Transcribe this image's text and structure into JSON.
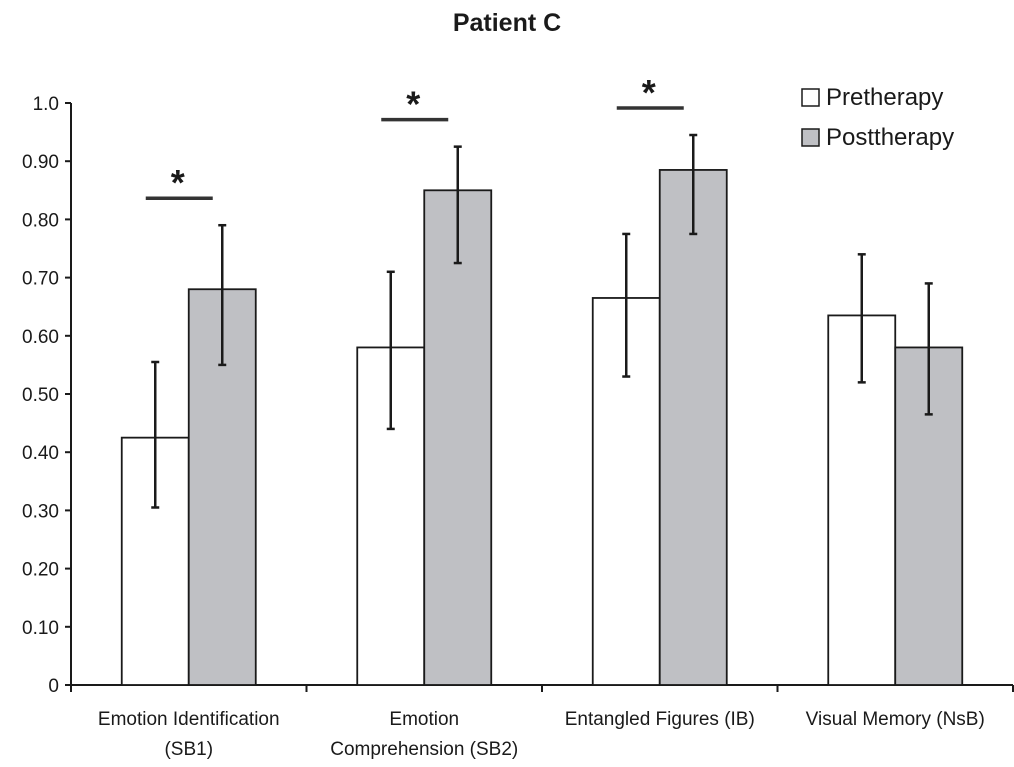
{
  "chart_data": {
    "type": "bar",
    "title": "Patient C",
    "xlabel": "",
    "ylabel": "",
    "ylim": [
      0,
      1.0
    ],
    "yticks": [
      {
        "value": 0,
        "label": "0"
      },
      {
        "value": 0.1,
        "label": "0.10"
      },
      {
        "value": 0.2,
        "label": "0.20"
      },
      {
        "value": 0.3,
        "label": "0.30"
      },
      {
        "value": 0.4,
        "label": "0.40"
      },
      {
        "value": 0.5,
        "label": "0.50"
      },
      {
        "value": 0.6,
        "label": "0.60"
      },
      {
        "value": 0.7,
        "label": "0.70"
      },
      {
        "value": 0.8,
        "label": "0.80"
      },
      {
        "value": 0.9,
        "label": "0.90"
      },
      {
        "value": 1.0,
        "label": "1.0"
      }
    ],
    "categories": [
      [
        "Emotion Identification",
        "(SB1)"
      ],
      [
        "Emotion",
        "Comprehension (SB2)"
      ],
      [
        "Entangled Figures (IB)"
      ],
      [
        "Visual Memory (NsB)"
      ]
    ],
    "series": [
      {
        "name": "Pretherapy",
        "color": "#ffffff",
        "values": [
          0.425,
          0.58,
          0.665,
          0.635
        ],
        "error_low": [
          0.305,
          0.44,
          0.53,
          0.52
        ],
        "error_high": [
          0.555,
          0.71,
          0.775,
          0.74
        ]
      },
      {
        "name": "Posttherapy",
        "color": "#bfc0c4",
        "values": [
          0.68,
          0.85,
          0.885,
          0.58
        ],
        "error_low": [
          0.55,
          0.725,
          0.775,
          0.465
        ],
        "error_high": [
          0.79,
          0.925,
          0.945,
          0.69
        ]
      }
    ],
    "significance": [
      {
        "category_index": 0,
        "marker": "*"
      },
      {
        "category_index": 1,
        "marker": "*"
      },
      {
        "category_index": 2,
        "marker": "*"
      }
    ],
    "legend_position": "top-right",
    "grid": false
  }
}
